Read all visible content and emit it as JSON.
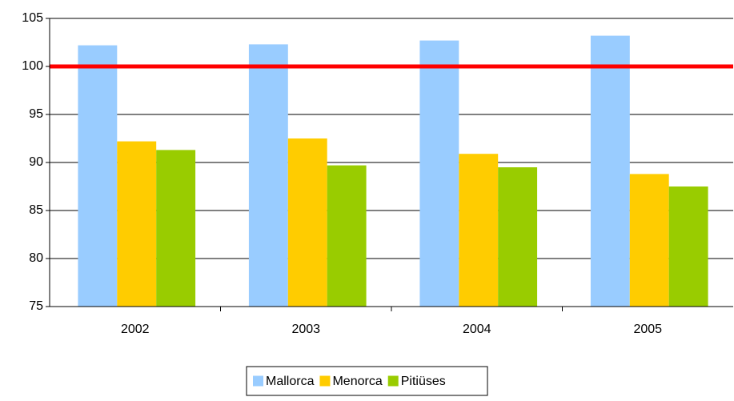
{
  "chart_data": {
    "type": "bar",
    "categories": [
      "2002",
      "2003",
      "2004",
      "2005"
    ],
    "series": [
      {
        "name": "Mallorca",
        "color": "#99ccff",
        "values": [
          102.2,
          102.3,
          102.7,
          103.2
        ]
      },
      {
        "name": "Menorca",
        "color": "#ffcc00",
        "values": [
          92.2,
          92.5,
          90.9,
          88.8
        ]
      },
      {
        "name": "Pitiüses",
        "color": "#99cc00",
        "values": [
          91.3,
          89.7,
          89.5,
          87.5
        ]
      }
    ],
    "ylim": [
      75,
      105
    ],
    "yticks": [
      75,
      80,
      85,
      90,
      95,
      100,
      105
    ],
    "grid": true,
    "reference_line": {
      "value": 100,
      "color": "#ff0000"
    },
    "legend": "bottom"
  }
}
